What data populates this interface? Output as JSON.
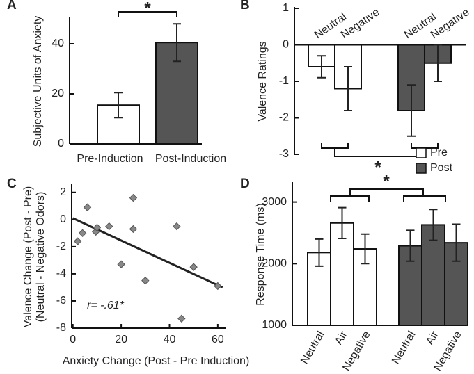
{
  "chart_data": [
    {
      "type": "bar",
      "panel": "A",
      "ylabel": "Subjective Units of Anxiety",
      "categories": [
        "Pre-Induction",
        "Post-Induction"
      ],
      "values": [
        15.5,
        40.5
      ],
      "errors": [
        5,
        7.5
      ],
      "colors": [
        "#ffffff",
        "#555555"
      ],
      "ylim": [
        0,
        50
      ],
      "yticks": [
        0,
        20,
        40
      ],
      "annotation": "*"
    },
    {
      "type": "grouped_bar",
      "panel": "B",
      "ylabel": "Valence Ratings",
      "categories": [
        "Neutral",
        "Negative"
      ],
      "series": [
        {
          "name": "Pre",
          "color": "#ffffff",
          "values": [
            -0.6,
            -1.2
          ],
          "errors": [
            0.3,
            0.6
          ]
        },
        {
          "name": "Post",
          "color": "#555555",
          "values": [
            -1.8,
            -0.5
          ],
          "errors": [
            0.7,
            0.5
          ]
        }
      ],
      "ylim": [
        -3,
        1
      ],
      "yticks": [
        1,
        0,
        -1,
        -2,
        -3
      ],
      "annotation": "*",
      "legend": "lower right"
    },
    {
      "type": "scatter",
      "panel": "C",
      "xlabel": "Anxiety Change (Post - Pre Induction)",
      "ylabel": [
        "Valence Change (Post - Pre)",
        "(Neutral - Negative Odors)"
      ],
      "x": [
        2,
        4,
        6,
        9.5,
        10,
        15,
        20,
        25,
        25,
        30,
        43,
        45,
        50,
        60
      ],
      "y": [
        -1.6,
        -1,
        0.9,
        -0.9,
        -0.6,
        -0.5,
        -3.3,
        1.6,
        -0.7,
        -4.5,
        -0.5,
        -7.3,
        -3.5,
        -4.9
      ],
      "color": "#888888",
      "fit": {
        "x": [
          0,
          62
        ],
        "y": [
          0.1,
          -5
        ]
      },
      "xlim": [
        -0.5,
        63.5
      ],
      "xticks": [
        0,
        20,
        40,
        60
      ],
      "ylim": [
        -8,
        2.5
      ],
      "yticks": [
        2,
        0,
        -2,
        -4,
        -6,
        -8
      ],
      "annotation": "r= -.61*"
    },
    {
      "type": "grouped_bar",
      "panel": "D",
      "ylabel": "Response Time (ms)",
      "categories": [
        "Neutral",
        "Air",
        "Negative"
      ],
      "series": [
        {
          "name": "Pre",
          "color": "#ffffff",
          "values": [
            2180,
            2660,
            2240
          ],
          "errors": [
            220,
            250,
            240
          ]
        },
        {
          "name": "Post",
          "color": "#555555",
          "values": [
            2290,
            2630,
            2340
          ],
          "errors": [
            250,
            250,
            300
          ]
        }
      ],
      "ylim": [
        1000,
        3300
      ],
      "yticks": [
        1000,
        2000,
        3000
      ],
      "annotation": "*"
    }
  ]
}
